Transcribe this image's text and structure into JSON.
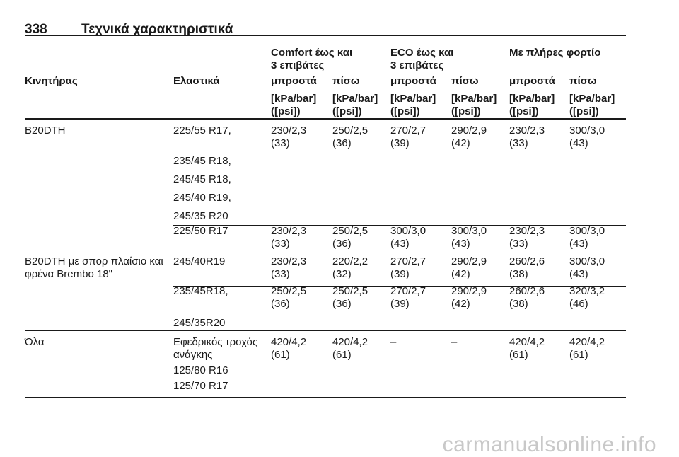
{
  "header": {
    "page_number": "338",
    "title": "Τεχνικά χαρακτηριστικά"
  },
  "table": {
    "group_headers": [
      [
        "Comfort έως και",
        "3 επιβάτες"
      ],
      [
        "ECO έως και",
        "3 επιβάτες"
      ],
      [
        "Με πλήρες φορτίο"
      ]
    ],
    "column_headers": [
      "Κινητήρας",
      "Ελαστικά",
      "μπροστά",
      "πίσω",
      "μπροστά",
      "πίσω",
      "μπροστά",
      "πίσω"
    ],
    "units": [
      [
        "[kPa/bar]",
        "([psi])"
      ],
      [
        "[kPa/bar]",
        "([psi])"
      ],
      [
        "[kPa/bar]",
        "([psi])"
      ],
      [
        "[kPa/bar]",
        "([psi])"
      ],
      [
        "[kPa/bar]",
        "([psi])"
      ],
      [
        "[kPa/bar]",
        "([psi])"
      ]
    ],
    "rows": [
      {
        "engine": [
          "B20DTH"
        ],
        "tyres": [
          "225/55 R17,",
          "235/45 R18,",
          "245/45 R18,",
          "245/40 R19,",
          "245/35 R20"
        ],
        "values": [
          [
            "230/2,3",
            "(33)"
          ],
          [
            "250/2,5",
            "(36)"
          ],
          [
            "270/2,7",
            "(39)"
          ],
          [
            "290/2,9",
            "(42)"
          ],
          [
            "230/2,3",
            "(33)"
          ],
          [
            "300/3,0",
            "(43)"
          ]
        ]
      },
      {
        "tyres": [
          "225/50 R17"
        ],
        "values": [
          [
            "230/2,3",
            "(33)"
          ],
          [
            "250/2,5",
            "(36)"
          ],
          [
            "300/3,0",
            "(43)"
          ],
          [
            "300/3,0",
            "(43)"
          ],
          [
            "230/2,3",
            "(33)"
          ],
          [
            "300/3,0",
            "(43)"
          ]
        ]
      },
      {
        "engine": [
          "B20DTH με σπορ πλαίσιο και",
          "φρένα Brembo 18\""
        ],
        "tyres": [
          "245/40R19"
        ],
        "values": [
          [
            "230/2,3",
            "(33)"
          ],
          [
            "220/2,2",
            "(32)"
          ],
          [
            "270/2,7",
            "(39)"
          ],
          [
            "290/2,9",
            "(42)"
          ],
          [
            "260/2,6",
            "(38)"
          ],
          [
            "300/3,0",
            "(43)"
          ]
        ]
      },
      {
        "tyres": [
          "235/45R18,",
          "245/35R20"
        ],
        "values": [
          [
            "250/2,5",
            "(36)"
          ],
          [
            "250/2,5",
            "(36)"
          ],
          [
            "270/2,7",
            "(39)"
          ],
          [
            "290/2,9",
            "(42)"
          ],
          [
            "260/2,6",
            "(38)"
          ],
          [
            "320/3,2",
            "(46)"
          ]
        ]
      },
      {
        "engine": [
          "Όλα"
        ],
        "tyres": [
          "Εφεδρικός τροχός",
          "ανάγκης",
          "125/80 R16",
          "125/70 R17"
        ],
        "values": [
          [
            "420/4,2",
            "(61)"
          ],
          [
            "420/4,2",
            "(61)"
          ],
          [
            "–"
          ],
          [
            "–"
          ],
          [
            "420/4,2",
            "(61)"
          ],
          [
            "420/4,2",
            "(61)"
          ]
        ]
      }
    ]
  },
  "watermark": "carmanualsonline.info"
}
